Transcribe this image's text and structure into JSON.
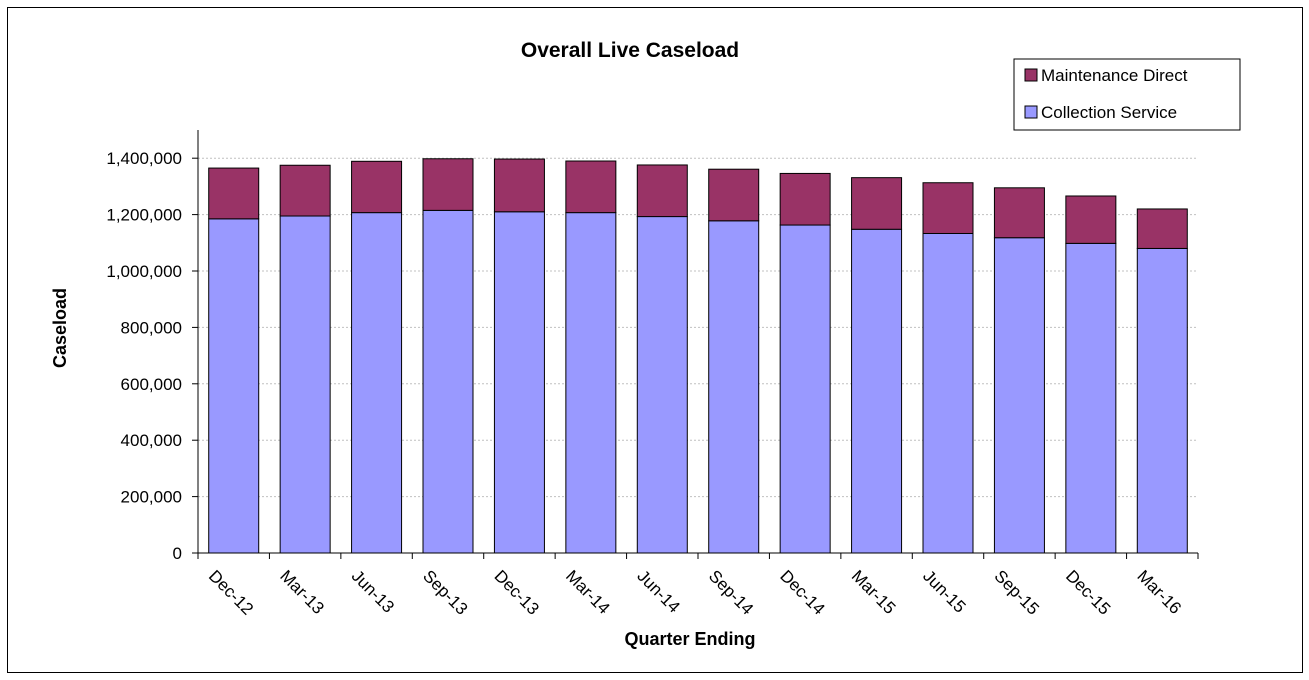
{
  "chart_data": {
    "type": "bar",
    "stacked": true,
    "title": "Overall Live Caseload",
    "xlabel": "Quarter Ending",
    "ylabel": "Caseload",
    "ylim": [
      0,
      1500000
    ],
    "yticks": [
      0,
      200000,
      400000,
      600000,
      800000,
      1000000,
      1200000,
      1400000
    ],
    "ytick_labels": [
      "0",
      "200,000",
      "400,000",
      "600,000",
      "800,000",
      "1,000,000",
      "1,200,000",
      "1,400,000"
    ],
    "grid": true,
    "legend_position": "top-right",
    "categories": [
      "Dec-12",
      "Mar-13",
      "Jun-13",
      "Sep-13",
      "Dec-13",
      "Mar-14",
      "Jun-14",
      "Sep-14",
      "Dec-14",
      "Mar-15",
      "Jun-15",
      "Sep-15",
      "Dec-15",
      "Mar-16"
    ],
    "series": [
      {
        "name": "Collection Service",
        "color": "#9999FF",
        "values": [
          1185000,
          1195000,
          1207000,
          1215000,
          1210000,
          1207000,
          1193000,
          1178000,
          1163000,
          1148000,
          1133000,
          1118000,
          1098000,
          1080000
        ]
      },
      {
        "name": "Maintenance Direct",
        "color": "#993366",
        "values": [
          180000,
          180000,
          182000,
          183000,
          187000,
          183000,
          183000,
          183000,
          183000,
          183000,
          180000,
          177000,
          168000,
          140000
        ]
      }
    ]
  }
}
